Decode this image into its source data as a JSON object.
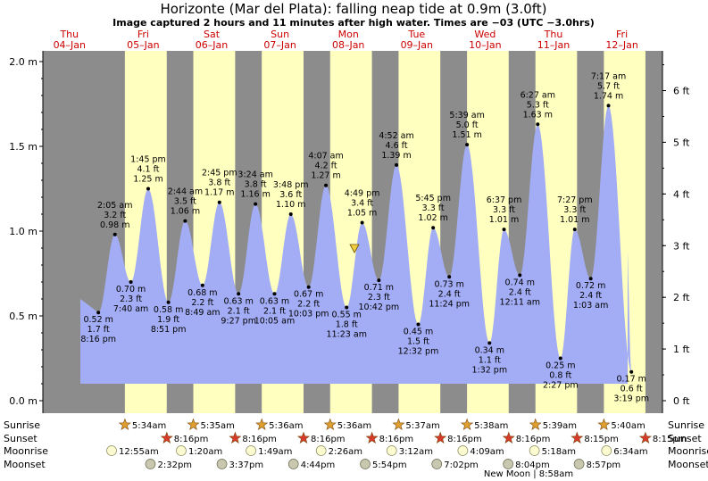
{
  "header": {
    "title": "Horizonte (Mar del Plata): falling  neap tide at 0.9m (3.0ft)",
    "subtitle": "Image captured 2 hours and 11 minutes after high water. Times are −03 (UTC −3.0hrs)"
  },
  "days": [
    {
      "name": "Thu",
      "date": "04–Jan"
    },
    {
      "name": "Fri",
      "date": "05–Jan"
    },
    {
      "name": "Sat",
      "date": "06–Jan"
    },
    {
      "name": "Sun",
      "date": "07–Jan"
    },
    {
      "name": "Mon",
      "date": "08–Jan"
    },
    {
      "name": "Tue",
      "date": "09–Jan"
    },
    {
      "name": "Wed",
      "date": "10–Jan"
    },
    {
      "name": "Thu",
      "date": "11–Jan"
    },
    {
      "name": "Fri",
      "date": "12–Jan"
    }
  ],
  "axes": {
    "left_ticks": [
      "0.0 m",
      "0.5 m",
      "1.0 m",
      "1.5 m",
      "2.0 m"
    ],
    "right_ticks": [
      "0 ft",
      "1 ft",
      "2 ft",
      "3 ft",
      "4 ft",
      "5 ft",
      "6 ft"
    ]
  },
  "colors": {
    "night": "#8c8c8c",
    "day": "#ffffc0",
    "water": "#a3adf5",
    "now_marker": "#f0d040",
    "sunrise_star": "#e0a030",
    "sunset_star": "#d83a2a",
    "moonrise": "#fdfbd0",
    "moonset": "#c8c8b0"
  },
  "chart_data": {
    "type": "area",
    "title": "Horizonte (Mar del Plata): falling  neap tide at 0.9m (3.0ft)",
    "ylabel": "m",
    "ylim": [
      -0.05,
      2.1
    ],
    "y2_unit": "ft",
    "now_level_m": 0.9,
    "tides": [
      {
        "time": "8:16 pm",
        "day": 0,
        "hour": 20.27,
        "m": "0.52 m",
        "ft": "1.7 ft",
        "value": 0.52,
        "type": "low",
        "t": "8:16 pm"
      },
      {
        "time": "2:05 am",
        "day": 1,
        "hour": 2.08,
        "m": "0.98 m",
        "ft": "3.2 ft",
        "value": 0.98,
        "type": "high",
        "t": "2:05 am"
      },
      {
        "time": "7:40 am",
        "day": 1,
        "hour": 7.67,
        "m": "0.70 m",
        "ft": "2.3 ft",
        "value": 0.7,
        "type": "low",
        "t": "7:40 am"
      },
      {
        "time": "1:45 pm",
        "day": 1,
        "hour": 13.75,
        "m": "1.25 m",
        "ft": "4.1 ft",
        "value": 1.25,
        "type": "high",
        "t": "1:45 pm"
      },
      {
        "time": "8:51 pm",
        "day": 1,
        "hour": 20.85,
        "m": "0.58 m",
        "ft": "1.9 ft",
        "value": 0.58,
        "type": "low",
        "t": "8:51 pm"
      },
      {
        "time": "2:44 am",
        "day": 2,
        "hour": 2.73,
        "m": "1.06 m",
        "ft": "3.5 ft",
        "value": 1.06,
        "type": "high",
        "t": "2:44 am"
      },
      {
        "time": "8:49 am",
        "day": 2,
        "hour": 8.82,
        "m": "0.68 m",
        "ft": "2.2 ft",
        "value": 0.68,
        "type": "low",
        "t": "8:49 am"
      },
      {
        "time": "2:45 pm",
        "day": 2,
        "hour": 14.75,
        "m": "1.17 m",
        "ft": "3.8 ft",
        "value": 1.17,
        "type": "high",
        "t": "2:45 pm"
      },
      {
        "time": "9:27 pm",
        "day": 2,
        "hour": 21.45,
        "m": "0.63 m",
        "ft": "2.1 ft",
        "value": 0.63,
        "type": "low",
        "t": "9:27 pm"
      },
      {
        "time": "3:24 am",
        "day": 3,
        "hour": 3.4,
        "m": "1.16 m",
        "ft": "3.8 ft",
        "value": 1.16,
        "type": "high",
        "t": "3:24 am"
      },
      {
        "time": "10:05 am",
        "day": 3,
        "hour": 10.08,
        "m": "0.63 m",
        "ft": "2.1 ft",
        "value": 0.63,
        "type": "low",
        "t": "10:05 am"
      },
      {
        "time": "3:48 pm",
        "day": 3,
        "hour": 15.8,
        "m": "1.10 m",
        "ft": "3.6 ft",
        "value": 1.1,
        "type": "high",
        "t": "3:48 pm"
      },
      {
        "time": "10:03 pm",
        "day": 3,
        "hour": 22.05,
        "m": "0.67 m",
        "ft": "2.2 ft",
        "value": 0.67,
        "type": "low",
        "t": "10:03 pm"
      },
      {
        "time": "4:07 am",
        "day": 4,
        "hour": 4.12,
        "m": "1.27 m",
        "ft": "4.2 ft",
        "value": 1.27,
        "type": "high",
        "t": "4:07 am"
      },
      {
        "time": "11:23 am",
        "day": 4,
        "hour": 11.38,
        "m": "0.55 m",
        "ft": "1.8 ft",
        "value": 0.55,
        "type": "low",
        "t": "11:23 am"
      },
      {
        "time": "4:49 pm",
        "day": 4,
        "hour": 16.82,
        "m": "1.05 m",
        "ft": "3.4 ft",
        "value": 1.05,
        "type": "high",
        "t": "4:49 pm"
      },
      {
        "time": "10:42 pm",
        "day": 4,
        "hour": 22.7,
        "m": "0.71 m",
        "ft": "2.3 ft",
        "value": 0.71,
        "type": "low",
        "t": "10:42 pm"
      },
      {
        "time": "4:52 am",
        "day": 5,
        "hour": 4.87,
        "m": "1.39 m",
        "ft": "4.6 ft",
        "value": 1.39,
        "type": "high",
        "t": "4:52 am"
      },
      {
        "time": "12:32 pm",
        "day": 5,
        "hour": 12.53,
        "m": "0.45 m",
        "ft": "1.5 ft",
        "value": 0.45,
        "type": "low",
        "t": "12:32 pm"
      },
      {
        "time": "5:45 pm",
        "day": 5,
        "hour": 17.75,
        "m": "1.02 m",
        "ft": "3.3 ft",
        "value": 1.02,
        "type": "high",
        "t": "5:45 pm"
      },
      {
        "time": "11:24 pm",
        "day": 5,
        "hour": 23.4,
        "m": "0.73 m",
        "ft": "2.4 ft",
        "value": 0.73,
        "type": "low",
        "t": "11:24 pm"
      },
      {
        "time": "5:39 am",
        "day": 6,
        "hour": 5.65,
        "m": "1.51 m",
        "ft": "5.0 ft",
        "value": 1.51,
        "type": "high",
        "t": "5:39 am"
      },
      {
        "time": "1:32 pm",
        "day": 6,
        "hour": 13.53,
        "m": "0.34 m",
        "ft": "1.1 ft",
        "value": 0.34,
        "type": "low",
        "t": "1:32 pm"
      },
      {
        "time": "6:37 pm",
        "day": 6,
        "hour": 18.62,
        "m": "1.01 m",
        "ft": "3.3 ft",
        "value": 1.01,
        "type": "high",
        "t": "6:37 pm"
      },
      {
        "time": "12:11 am",
        "day": 7,
        "hour": 0.18,
        "m": "0.74 m",
        "ft": "2.4 ft",
        "value": 0.74,
        "type": "low",
        "t": "12:11 am"
      },
      {
        "time": "6:27 am",
        "day": 7,
        "hour": 6.45,
        "m": "1.63 m",
        "ft": "5.3 ft",
        "value": 1.63,
        "type": "high",
        "t": "6:27 am"
      },
      {
        "time": "2:27 pm",
        "day": 7,
        "hour": 14.45,
        "m": "0.25 m",
        "ft": "0.8 ft",
        "value": 0.25,
        "type": "low",
        "t": "2:27 pm"
      },
      {
        "time": "7:27 pm",
        "day": 7,
        "hour": 19.45,
        "m": "1.01 m",
        "ft": "3.3 ft",
        "value": 1.01,
        "type": "high",
        "t": "7:27 pm"
      },
      {
        "time": "1:03 am",
        "day": 8,
        "hour": 1.05,
        "m": "0.72 m",
        "ft": "2.4 ft",
        "value": 0.72,
        "type": "low",
        "t": "1:03 am"
      },
      {
        "time": "7:17 am",
        "day": 8,
        "hour": 7.28,
        "m": "1.74 m",
        "ft": "5.7 ft",
        "value": 1.74,
        "type": "high",
        "t": "7:17 am"
      },
      {
        "time": "3:19 pm",
        "day": 8,
        "hour": 15.32,
        "m": "0.17 m",
        "ft": "0.6 ft",
        "value": 0.17,
        "type": "low",
        "t": "3:19 pm"
      }
    ]
  },
  "rows": {
    "labels": [
      "Sunrise",
      "Sunset",
      "Moonrise",
      "Moonset"
    ],
    "sunrise": [
      {
        "day": 1,
        "time": "5:34am"
      },
      {
        "day": 2,
        "time": "5:35am"
      },
      {
        "day": 3,
        "time": "5:36am"
      },
      {
        "day": 4,
        "time": "5:36am"
      },
      {
        "day": 5,
        "time": "5:37am"
      },
      {
        "day": 6,
        "time": "5:38am"
      },
      {
        "day": 7,
        "time": "5:39am"
      },
      {
        "day": 8,
        "time": "5:40am"
      }
    ],
    "sunset": [
      {
        "day": 1,
        "time": "8:16pm"
      },
      {
        "day": 2,
        "time": "8:16pm"
      },
      {
        "day": 3,
        "time": "8:16pm"
      },
      {
        "day": 4,
        "time": "8:16pm"
      },
      {
        "day": 5,
        "time": "8:16pm"
      },
      {
        "day": 6,
        "time": "8:16pm"
      },
      {
        "day": 7,
        "time": "8:15pm"
      },
      {
        "day": 8,
        "time": "8:15pm"
      }
    ],
    "moonrise": [
      {
        "day": 1,
        "time": "12:55am"
      },
      {
        "day": 2,
        "time": "1:20am"
      },
      {
        "day": 3,
        "time": "1:49am"
      },
      {
        "day": 4,
        "time": "2:26am"
      },
      {
        "day": 5,
        "time": "3:12am"
      },
      {
        "day": 6,
        "time": "4:09am"
      },
      {
        "day": 7,
        "time": "5:18am"
      },
      {
        "day": 8,
        "time": "6:34am"
      }
    ],
    "moonset": [
      {
        "day": 1,
        "time": "2:32pm"
      },
      {
        "day": 2,
        "time": "3:37pm"
      },
      {
        "day": 3,
        "time": "4:44pm"
      },
      {
        "day": 4,
        "time": "5:54pm"
      },
      {
        "day": 5,
        "time": "7:02pm"
      },
      {
        "day": 6,
        "time": "8:04pm"
      },
      {
        "day": 7,
        "time": "8:57pm"
      }
    ],
    "new_moon": "New Moon | 8:58am"
  }
}
